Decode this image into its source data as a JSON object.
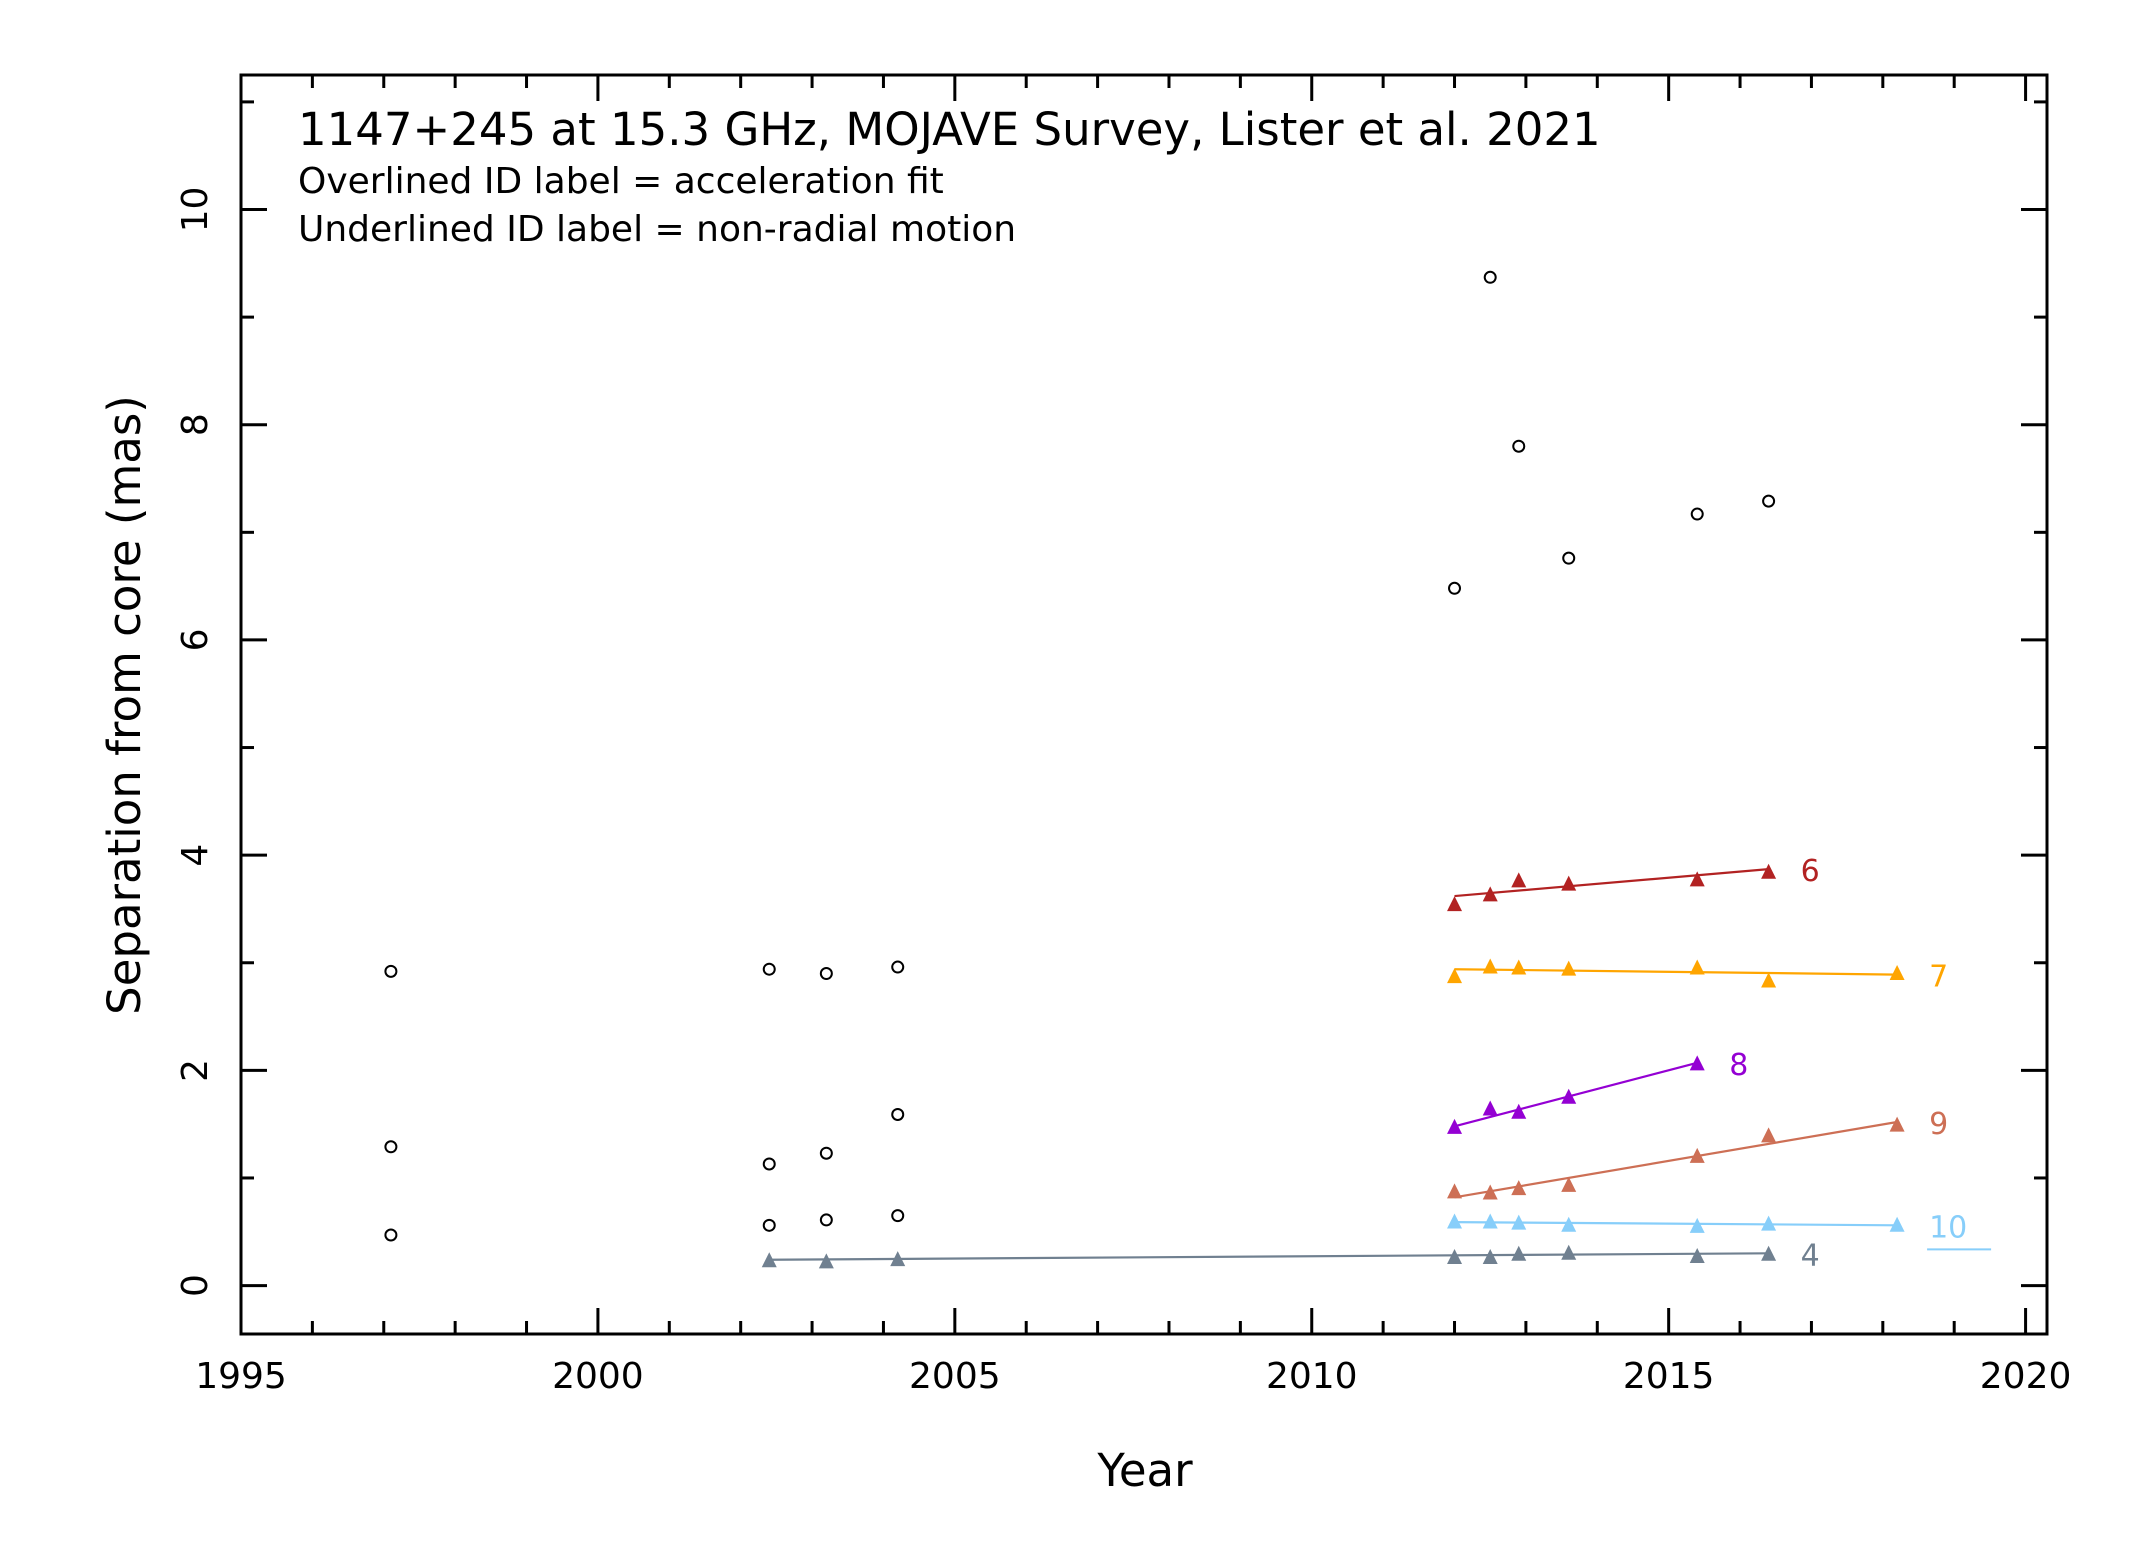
{
  "chart_data": {
    "type": "scatter",
    "title": "1147+245 at 15.3 GHz, MOJAVE Survey, Lister et al. 2021",
    "subtitle_lines": [
      "Overlined ID label = acceleration fit",
      "Underlined ID label = non-radial motion"
    ],
    "xlabel": "Year",
    "ylabel": "Separation from core (mas)",
    "xlim": [
      1995,
      2020.3
    ],
    "ylim": [
      -0.45,
      11.25
    ],
    "x_ticks": [
      1995,
      2000,
      2005,
      2010,
      2015,
      2020
    ],
    "y_ticks": [
      0,
      2,
      4,
      6,
      8,
      10
    ],
    "x_tick_labels": [
      "1995",
      "2000",
      "2005",
      "2010",
      "2015",
      "2020"
    ],
    "y_tick_labels": [
      "0",
      "2",
      "4",
      "6",
      "8",
      "10"
    ],
    "unassigned_points": {
      "marker": "open-circle",
      "color": "#000000",
      "points": [
        [
          1997.1,
          2.92
        ],
        [
          1997.1,
          1.29
        ],
        [
          1997.1,
          0.47
        ],
        [
          2002.4,
          2.94
        ],
        [
          2002.4,
          1.13
        ],
        [
          2002.4,
          0.56
        ],
        [
          2003.2,
          2.9
        ],
        [
          2003.2,
          1.23
        ],
        [
          2003.2,
          0.61
        ],
        [
          2004.2,
          2.96
        ],
        [
          2004.2,
          1.59
        ],
        [
          2004.2,
          0.65
        ],
        [
          2012.0,
          6.48
        ],
        [
          2012.5,
          9.37
        ],
        [
          2012.9,
          7.8
        ],
        [
          2013.6,
          6.76
        ],
        [
          2015.4,
          7.17
        ],
        [
          2016.4,
          7.29
        ]
      ]
    },
    "series": [
      {
        "name": "6",
        "color": "#b22222",
        "label_underlined": false,
        "points": [
          [
            2012.0,
            3.55
          ],
          [
            2012.5,
            3.64
          ],
          [
            2012.9,
            3.77
          ],
          [
            2013.6,
            3.74
          ],
          [
            2015.4,
            3.78
          ],
          [
            2016.4,
            3.85
          ]
        ],
        "fit": [
          [
            2012.0,
            3.62
          ],
          [
            2016.4,
            3.87
          ]
        ]
      },
      {
        "name": "7",
        "color": "#ffa500",
        "label_underlined": false,
        "points": [
          [
            2012.0,
            2.88
          ],
          [
            2012.5,
            2.97
          ],
          [
            2012.9,
            2.96
          ],
          [
            2013.6,
            2.95
          ],
          [
            2015.4,
            2.96
          ],
          [
            2016.4,
            2.84
          ],
          [
            2018.2,
            2.91
          ]
        ],
        "fit": [
          [
            2012.0,
            2.94
          ],
          [
            2018.2,
            2.89
          ]
        ]
      },
      {
        "name": "8",
        "color": "#9400d3",
        "label_underlined": false,
        "points": [
          [
            2012.0,
            1.48
          ],
          [
            2012.5,
            1.65
          ],
          [
            2012.9,
            1.62
          ],
          [
            2013.6,
            1.76
          ],
          [
            2015.4,
            2.07
          ]
        ],
        "fit": [
          [
            2012.0,
            1.48
          ],
          [
            2015.4,
            2.07
          ]
        ]
      },
      {
        "name": "9",
        "color": "#cd6f55",
        "label_underlined": false,
        "points": [
          [
            2012.0,
            0.88
          ],
          [
            2012.5,
            0.87
          ],
          [
            2012.9,
            0.91
          ],
          [
            2013.6,
            0.94
          ],
          [
            2015.4,
            1.21
          ],
          [
            2016.4,
            1.4
          ],
          [
            2018.2,
            1.5
          ]
        ],
        "fit": [
          [
            2012.0,
            0.82
          ],
          [
            2018.2,
            1.52
          ]
        ]
      },
      {
        "name": "10",
        "color": "#87cefa",
        "label_underlined": true,
        "points": [
          [
            2012.0,
            0.6
          ],
          [
            2012.5,
            0.6
          ],
          [
            2012.9,
            0.59
          ],
          [
            2013.6,
            0.57
          ],
          [
            2015.4,
            0.56
          ],
          [
            2016.4,
            0.58
          ],
          [
            2018.2,
            0.57
          ]
        ],
        "fit": [
          [
            2012.0,
            0.59
          ],
          [
            2018.2,
            0.56
          ]
        ]
      },
      {
        "name": "4",
        "color": "#708090",
        "label_underlined": false,
        "points": [
          [
            2002.4,
            0.24
          ],
          [
            2003.2,
            0.23
          ],
          [
            2004.2,
            0.25
          ],
          [
            2012.0,
            0.27
          ],
          [
            2012.5,
            0.27
          ],
          [
            2012.9,
            0.3
          ],
          [
            2013.6,
            0.31
          ],
          [
            2015.4,
            0.28
          ],
          [
            2016.4,
            0.3
          ]
        ],
        "fit": [
          [
            2002.4,
            0.24
          ],
          [
            2016.4,
            0.3
          ]
        ]
      }
    ],
    "grid": false,
    "legend": "none"
  }
}
